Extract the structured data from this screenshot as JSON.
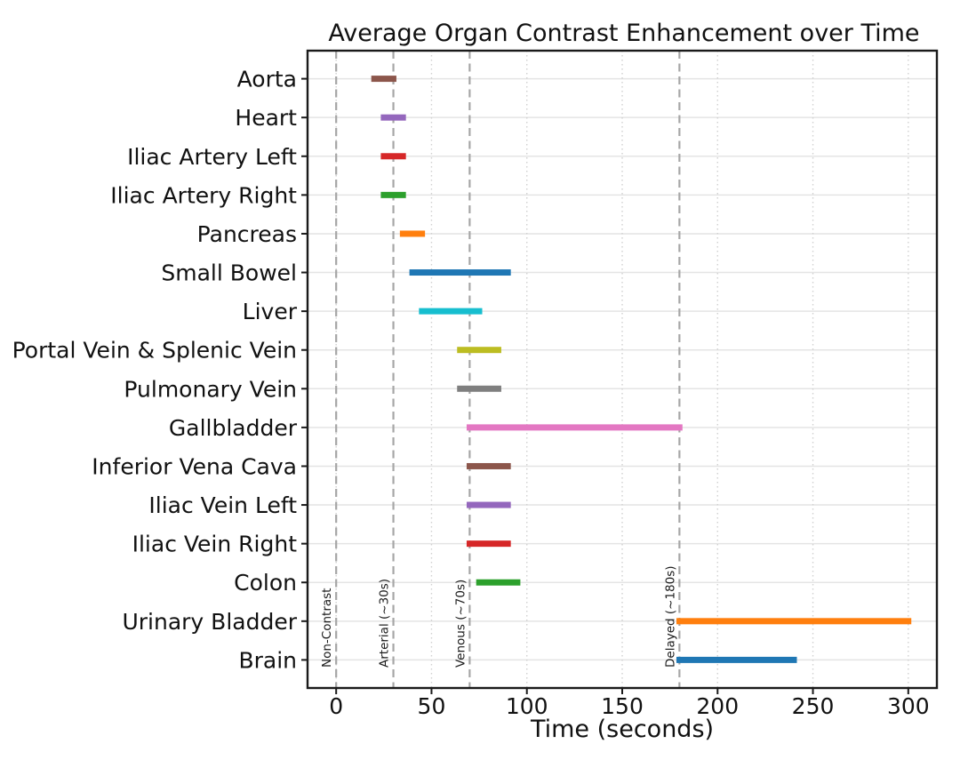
{
  "chart_data": {
    "type": "bar",
    "subtype": "horizontal_range_timeline",
    "title": "Average Organ Contrast Enhancement over Time",
    "xlabel": "Time (seconds)",
    "ylabel": "",
    "xlim": [
      -15,
      315
    ],
    "xticks": [
      0,
      50,
      100,
      150,
      200,
      250,
      300
    ],
    "grid": {
      "horizontal": "light-solid-per-category",
      "vertical": "light-dotted-at-xticks"
    },
    "legend_position": "none",
    "categories": [
      "Aorta",
      "Heart",
      "Iliac Artery Left",
      "Iliac Artery Right",
      "Pancreas",
      "Small Bowel",
      "Liver",
      "Portal Vein & Splenic Vein",
      "Pulmonary Vein",
      "Gallbladder",
      "Inferior Vena Cava",
      "Iliac Vein Left",
      "Iliac Vein Right",
      "Colon",
      "Urinary Bladder",
      "Brain"
    ],
    "bars": [
      {
        "label": "Aorta",
        "start_s": 20,
        "end_s": 30,
        "color": "#8c564b"
      },
      {
        "label": "Heart",
        "start_s": 25,
        "end_s": 35,
        "color": "#9467bd"
      },
      {
        "label": "Iliac Artery Left",
        "start_s": 25,
        "end_s": 35,
        "color": "#d62728"
      },
      {
        "label": "Iliac Artery Right",
        "start_s": 25,
        "end_s": 35,
        "color": "#2ca02c"
      },
      {
        "label": "Pancreas",
        "start_s": 35,
        "end_s": 45,
        "color": "#ff7f0e"
      },
      {
        "label": "Small Bowel",
        "start_s": 40,
        "end_s": 90,
        "color": "#1f77b4"
      },
      {
        "label": "Liver",
        "start_s": 45,
        "end_s": 75,
        "color": "#17becf"
      },
      {
        "label": "Portal Vein & Splenic Vein",
        "start_s": 65,
        "end_s": 85,
        "color": "#bcbd22"
      },
      {
        "label": "Pulmonary Vein",
        "start_s": 65,
        "end_s": 85,
        "color": "#7f7f7f"
      },
      {
        "label": "Gallbladder",
        "start_s": 70,
        "end_s": 180,
        "color": "#e377c2"
      },
      {
        "label": "Inferior Vena Cava",
        "start_s": 70,
        "end_s": 90,
        "color": "#8c564b"
      },
      {
        "label": "Iliac Vein Left",
        "start_s": 70,
        "end_s": 90,
        "color": "#9467bd"
      },
      {
        "label": "Iliac Vein Right",
        "start_s": 70,
        "end_s": 90,
        "color": "#d62728"
      },
      {
        "label": "Colon",
        "start_s": 75,
        "end_s": 95,
        "color": "#2ca02c"
      },
      {
        "label": "Urinary Bladder",
        "start_s": 180,
        "end_s": 300,
        "color": "#ff7f0e"
      },
      {
        "label": "Brain",
        "start_s": 180,
        "end_s": 240,
        "color": "#1f77b4"
      }
    ],
    "phase_lines": [
      {
        "label": "Non-Contrast",
        "x_s": 0
      },
      {
        "label": "Arterial (~30s)",
        "x_s": 30
      },
      {
        "label": "Venous (~70s)",
        "x_s": 70
      },
      {
        "label": "Delayed (~180s)",
        "x_s": 180
      }
    ],
    "colors": {
      "phase_line": "#a6a6a6",
      "grid_horizontal": "#e4e4e4",
      "grid_vertical_dotted": "#d0d0d0",
      "spine": "#1a1a1a",
      "text": "#111111",
      "background": "#ffffff"
    }
  }
}
